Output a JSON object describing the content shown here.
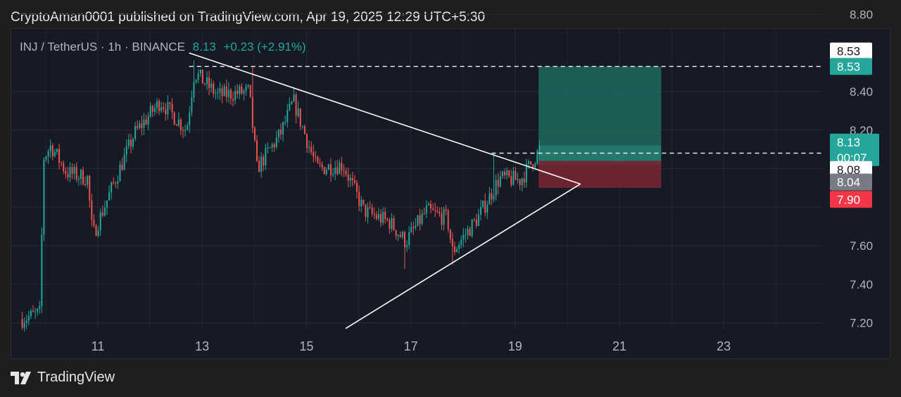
{
  "header": {
    "published_line": "CryptoAman0001 published on TradingView.com, Apr 19, 2025 12:29 UTC+5:30"
  },
  "legend": {
    "symbol": "INJ / TetherUS · 1h · BINANCE",
    "price": "8.13",
    "change": "+0.23 (+2.91%)"
  },
  "footer": {
    "brand": "TradingView"
  },
  "colors": {
    "background": "#161a25",
    "up": "#26a69a",
    "down": "#ef5350",
    "grid": "#252a36",
    "profit_zone": "#1e6a5f",
    "loss_zone": "#7a2633"
  },
  "chart_data": {
    "type": "candlestick",
    "timeframe": "1h",
    "x_ticks": [
      "11",
      "13",
      "15",
      "17",
      "19",
      "21",
      "23"
    ],
    "y_ticks": [
      8.8,
      8.4,
      8.2,
      7.6,
      7.4,
      7.2
    ],
    "ylim": [
      7.15,
      8.85
    ],
    "grid": true,
    "price_path_anchors": [
      {
        "day": 9.55,
        "price": 7.22
      },
      {
        "day": 9.9,
        "price": 7.25
      },
      {
        "day": 9.95,
        "price": 8.05
      },
      {
        "day": 10.1,
        "price": 8.12
      },
      {
        "day": 10.4,
        "price": 7.98
      },
      {
        "day": 10.8,
        "price": 7.95
      },
      {
        "day": 10.9,
        "price": 7.65
      },
      {
        "day": 11.3,
        "price": 7.92
      },
      {
        "day": 11.7,
        "price": 8.18
      },
      {
        "day": 12.2,
        "price": 8.35
      },
      {
        "day": 12.7,
        "price": 8.2
      },
      {
        "day": 12.85,
        "price": 8.5
      },
      {
        "day": 13.3,
        "price": 8.38
      },
      {
        "day": 13.9,
        "price": 8.4
      },
      {
        "day": 14.05,
        "price": 8.0
      },
      {
        "day": 14.5,
        "price": 8.18
      },
      {
        "day": 14.75,
        "price": 8.35
      },
      {
        "day": 15.2,
        "price": 8.0
      },
      {
        "day": 15.7,
        "price": 8.02
      },
      {
        "day": 16.1,
        "price": 7.78
      },
      {
        "day": 16.6,
        "price": 7.72
      },
      {
        "day": 16.9,
        "price": 7.62
      },
      {
        "day": 17.3,
        "price": 7.78
      },
      {
        "day": 17.7,
        "price": 7.74
      },
      {
        "day": 17.8,
        "price": 7.57
      },
      {
        "day": 18.3,
        "price": 7.75
      },
      {
        "day": 18.7,
        "price": 7.95
      },
      {
        "day": 19.1,
        "price": 7.94
      },
      {
        "day": 19.5,
        "price": 8.11
      }
    ],
    "special_wicks": [
      {
        "day": 12.85,
        "high": 8.56
      },
      {
        "day": 13.95,
        "high": 8.53
      },
      {
        "day": 17.8,
        "low": 7.5
      },
      {
        "day": 16.9,
        "low": 7.48
      },
      {
        "day": 18.6,
        "high": 8.08
      }
    ],
    "trendlines": [
      {
        "name": "resistance",
        "from": {
          "day": 12.75,
          "price": 8.6
        },
        "to": {
          "day": 20.25,
          "price": 7.92
        }
      },
      {
        "name": "support",
        "from": {
          "day": 15.75,
          "price": 7.17
        },
        "to": {
          "day": 20.25,
          "price": 7.92
        }
      }
    ],
    "horizontal_levels": [
      {
        "price": 8.53,
        "from_day": 12.75
      },
      {
        "price": 8.08,
        "from_day": 18.55
      }
    ],
    "position": {
      "type": "long",
      "entry": 8.04,
      "target": 8.53,
      "stop": 7.9,
      "start_day": 19.45,
      "end_day": 21.8
    },
    "price_labels": [
      {
        "id": "target_outline",
        "text": "8.53",
        "price": 8.61,
        "style": "outline"
      },
      {
        "id": "target",
        "text": "8.53",
        "price": 8.53,
        "style": "up"
      },
      {
        "id": "last",
        "text": "8.13",
        "subtext": "00:07",
        "price": 8.13,
        "style": "up"
      },
      {
        "id": "level",
        "text": "8.08",
        "price": 7.995,
        "style": "outline"
      },
      {
        "id": "entry",
        "text": "8.04",
        "price": 7.93,
        "style": "gray"
      },
      {
        "id": "stop",
        "text": "7.90",
        "price": 7.84,
        "style": "down"
      }
    ]
  }
}
